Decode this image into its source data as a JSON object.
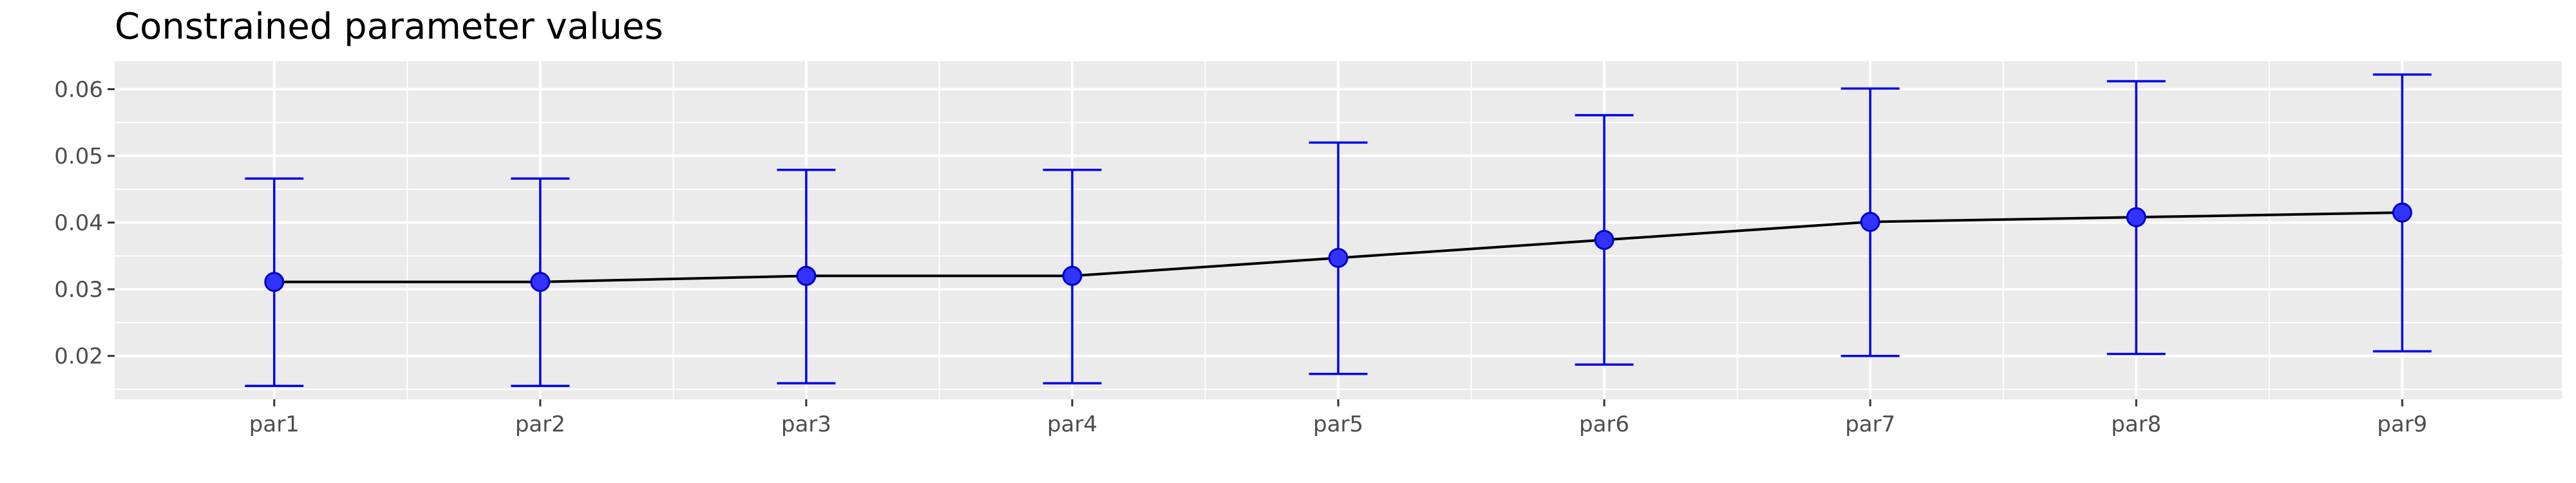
{
  "chart_data": {
    "type": "line",
    "title": "Constrained parameter values",
    "xlabel": "",
    "ylabel": "",
    "categories": [
      "par1",
      "par2",
      "par3",
      "par4",
      "par5",
      "par6",
      "par7",
      "par8",
      "par9"
    ],
    "series": [
      {
        "name": "estimate",
        "values": [
          0.0311,
          0.0311,
          0.032,
          0.032,
          0.0347,
          0.0374,
          0.0401,
          0.0408,
          0.0415
        ],
        "lower": [
          0.0155,
          0.0155,
          0.0159,
          0.0159,
          0.0173,
          0.0187,
          0.02,
          0.0203,
          0.0207
        ],
        "upper": [
          0.0466,
          0.0466,
          0.0479,
          0.0479,
          0.052,
          0.0561,
          0.0601,
          0.0612,
          0.0622
        ]
      }
    ],
    "ylim": [
      0.0135,
      0.0642
    ],
    "yticks": [
      0.02,
      0.03,
      0.04,
      0.05,
      0.06
    ],
    "ytick_labels": [
      "0.02",
      "0.03",
      "0.04",
      "0.05",
      "0.06"
    ],
    "grid": true,
    "colors": {
      "panel_background": "#ebebeb",
      "grid": "#ffffff",
      "line": "#000000",
      "errorbar": "#0000ee",
      "point_fill": "#3333ff",
      "point_stroke": "#0000cc",
      "tick_text": "#4d4d4d",
      "tick_mark": "#333333"
    }
  }
}
